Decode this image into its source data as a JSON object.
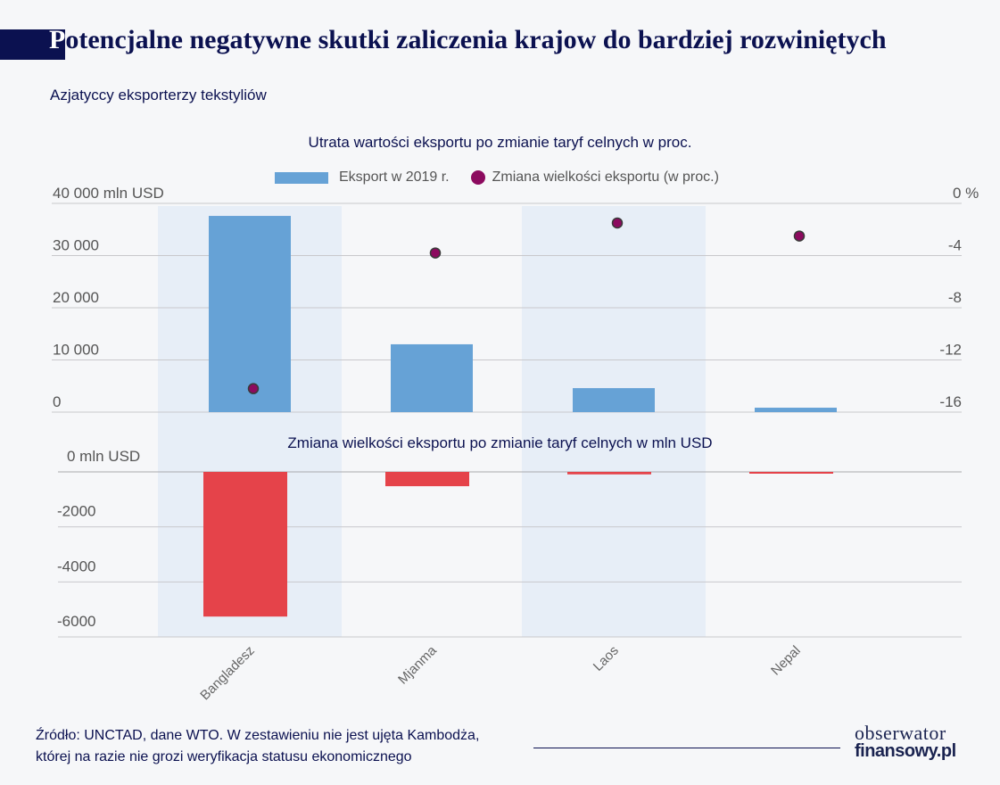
{
  "header": {
    "title_first_letter": "P",
    "title_rest": "otencjalne negatywne skutki zaliczenia krajow do bardziej rozwiniętych",
    "subtitle": "Azjatyccy eksporterzy tekstyliów"
  },
  "footer": {
    "source_line1": "Źródło: UNCTAD, dane WTO. W zestawieniu nie jest ujęta Kambodża,",
    "source_line2": "której na razie nie grozi weryfikacja statusu ekonomicznego",
    "logo_line1": "obserwator",
    "logo_line2": "finansowy.pl"
  },
  "colors": {
    "title": "#0b1150",
    "export_bar": "#66a2d6",
    "change_dot": "#8c0a5f",
    "loss_bar": "#e5434a",
    "band": "#e7eef7",
    "grid": "#c8c8cc"
  },
  "chart_data": [
    {
      "type": "bar",
      "title": "Utrata wartości eksportu po zmianie taryf celnych w proc.",
      "categories": [
        "Bangladesz",
        "Mjanma",
        "Laos",
        "Nepal"
      ],
      "legend": [
        "Eksport w 2019 r.",
        "Zmiana wielkości eksportu (w proc.)"
      ],
      "legend_position": "top-center",
      "series": [
        {
          "name": "Eksport w 2019 r.",
          "kind": "bar",
          "axis": "left",
          "values": [
            37600,
            13000,
            4600,
            850
          ]
        },
        {
          "name": "Zmiana wielkości eksportu (w proc.)",
          "kind": "scatter",
          "axis": "right",
          "values": [
            -14.2,
            -3.8,
            -1.5,
            -2.5
          ]
        }
      ],
      "left_axis": {
        "ylim": [
          0,
          40000
        ],
        "ticks": [
          40000,
          30000,
          20000,
          10000,
          0
        ],
        "tick_labels": [
          "40 000 mln USD",
          "30 000",
          "20 000",
          "10 000",
          "0"
        ]
      },
      "right_axis": {
        "ylim": [
          -16,
          0
        ],
        "ticks": [
          0,
          -4,
          -8,
          -12,
          -16
        ],
        "tick_labels": [
          "0 %",
          "-4",
          "-8",
          "-12",
          "-16"
        ]
      },
      "grid": true
    },
    {
      "type": "bar",
      "title": "Zmiana wielkości eksportu po zmianie taryf celnych w mln USD",
      "categories": [
        "Bangladesz",
        "Mjanma",
        "Laos",
        "Nepal"
      ],
      "series": [
        {
          "name": "Zmiana wielkości eksportu (mln USD)",
          "values": [
            -5260,
            -520,
            -90,
            -50
          ]
        }
      ],
      "ylim": [
        -6000,
        0
      ],
      "ticks": [
        0,
        -2000,
        -4000,
        -6000
      ],
      "tick_labels": [
        "0 mln USD",
        "-2000",
        "-4000",
        "-6000"
      ],
      "grid": true
    }
  ]
}
